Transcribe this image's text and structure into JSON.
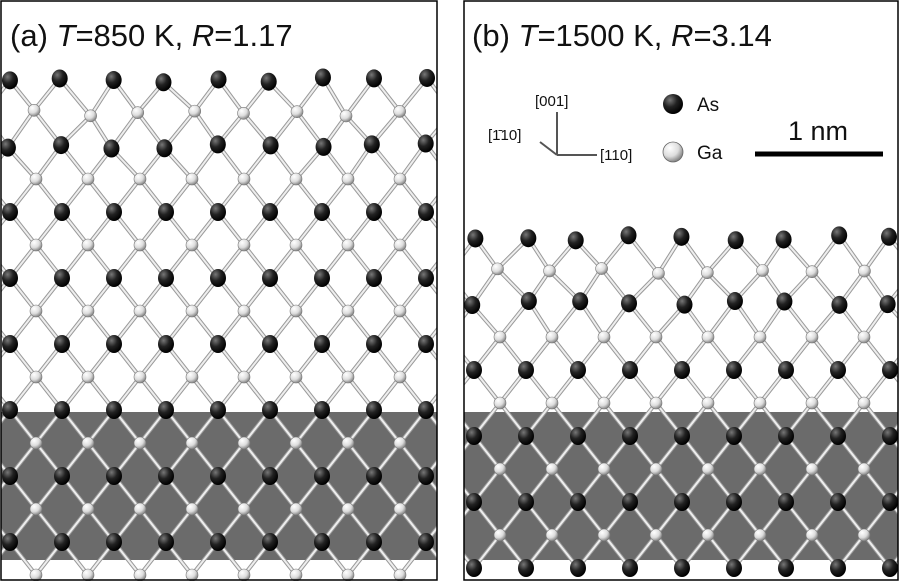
{
  "panels": [
    {
      "label": "(a)",
      "t_symbol": "T",
      "t_value": "=850 K,",
      "r_symbol": "R",
      "r_value": "=1.17"
    },
    {
      "label": "(b)",
      "t_symbol": "T",
      "t_value": "=1500 K,",
      "r_symbol": "R",
      "r_value": "=3.14"
    }
  ],
  "axes": {
    "up": "[001]",
    "back": "[1̄10]",
    "right": "[110]"
  },
  "legend": {
    "as": "As",
    "ga": "Ga"
  },
  "scale_bar": "1 nm"
}
